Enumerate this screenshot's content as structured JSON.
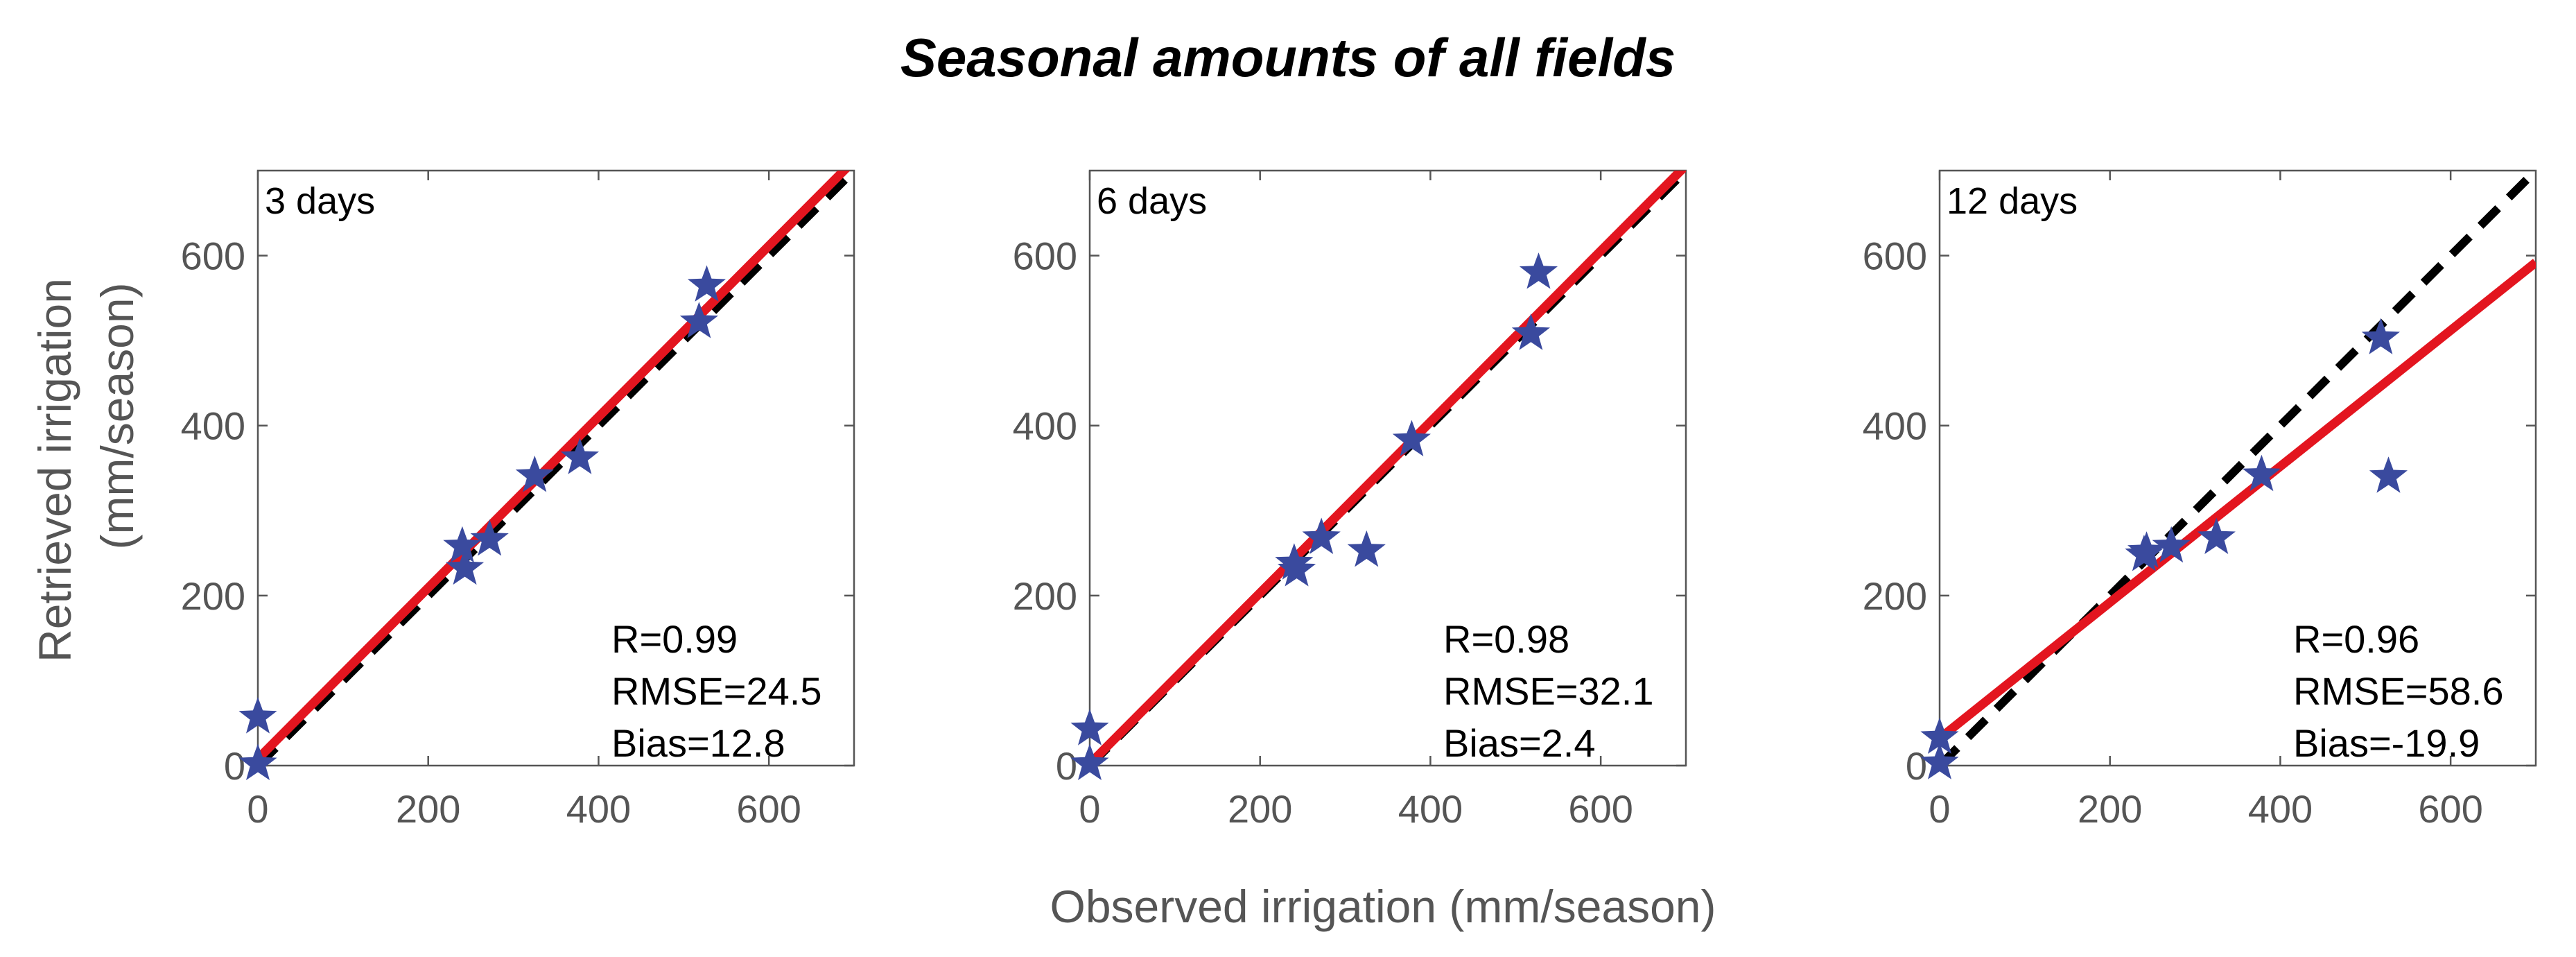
{
  "chart_data": {
    "title": "Seasonal amounts of all fields",
    "xlabel": "Observed irrigation (mm/season)",
    "ylabel_line1": "Retrieved irrigation",
    "ylabel_line2": "(mm/season)",
    "type": "scatter",
    "colors": {
      "points": "#3A4A9E",
      "fit_line": "#E3151F",
      "one_to_one": "#000000",
      "axis": "#555555"
    },
    "panels": [
      {
        "label": "3 days",
        "xlim": [
          0,
          700
        ],
        "ylim": [
          0,
          700
        ],
        "xticks": [
          0,
          200,
          400,
          600
        ],
        "yticks": [
          0,
          200,
          400,
          600
        ],
        "xtick_labels": [
          "0",
          "200",
          "400",
          "600"
        ],
        "ytick_labels": [
          "0",
          "200",
          "400",
          "600"
        ],
        "points": [
          [
            0,
            57
          ],
          [
            0,
            2
          ],
          [
            240,
            258
          ],
          [
            243,
            232
          ],
          [
            272,
            266
          ],
          [
            325,
            341
          ],
          [
            378,
            362
          ],
          [
            518,
            522
          ],
          [
            527,
            565
          ]
        ],
        "fit_line": [
          [
            0,
            8
          ],
          [
            700,
            712
          ]
        ],
        "one_to_one": [
          [
            0,
            0
          ],
          [
            700,
            700
          ]
        ],
        "stats": [
          "R=0.99",
          "RMSE=24.5",
          "Bias=12.8"
        ]
      },
      {
        "label": "6 days",
        "xlim": [
          0,
          700
        ],
        "ylim": [
          0,
          700
        ],
        "xticks": [
          0,
          200,
          400,
          600
        ],
        "yticks": [
          0,
          200,
          400,
          600
        ],
        "xtick_labels": [
          "0",
          "200",
          "400",
          "600"
        ],
        "ytick_labels": [
          "0",
          "200",
          "400",
          "600"
        ],
        "points": [
          [
            0,
            43
          ],
          [
            0,
            2
          ],
          [
            240,
            238
          ],
          [
            243,
            230
          ],
          [
            272,
            268
          ],
          [
            325,
            253
          ],
          [
            378,
            383
          ],
          [
            518,
            508
          ],
          [
            527,
            580
          ]
        ],
        "fit_line": [
          [
            0,
            2
          ],
          [
            700,
            706
          ]
        ],
        "one_to_one": [
          [
            0,
            0
          ],
          [
            700,
            700
          ]
        ],
        "stats": [
          "R=0.98",
          "RMSE=32.1",
          "Bias=2.4"
        ]
      },
      {
        "label": "12 days",
        "xlim": [
          0,
          700
        ],
        "ylim": [
          0,
          700
        ],
        "xticks": [
          0,
          200,
          400,
          600
        ],
        "yticks": [
          0,
          200,
          400,
          600
        ],
        "xtick_labels": [
          "0",
          "200",
          "400",
          "600"
        ],
        "ytick_labels": [
          "0",
          "200",
          "400",
          "600"
        ],
        "points": [
          [
            0,
            33
          ],
          [
            0,
            3
          ],
          [
            240,
            248
          ],
          [
            243,
            252
          ],
          [
            272,
            258
          ],
          [
            325,
            268
          ],
          [
            378,
            342
          ],
          [
            518,
            503
          ],
          [
            527,
            340
          ]
        ],
        "fit_line": [
          [
            0,
            32
          ],
          [
            700,
            592
          ]
        ],
        "one_to_one": [
          [
            0,
            0
          ],
          [
            700,
            700
          ]
        ],
        "stats": [
          "R=0.96",
          "RMSE=58.6",
          "Bias=-19.9"
        ]
      }
    ]
  }
}
